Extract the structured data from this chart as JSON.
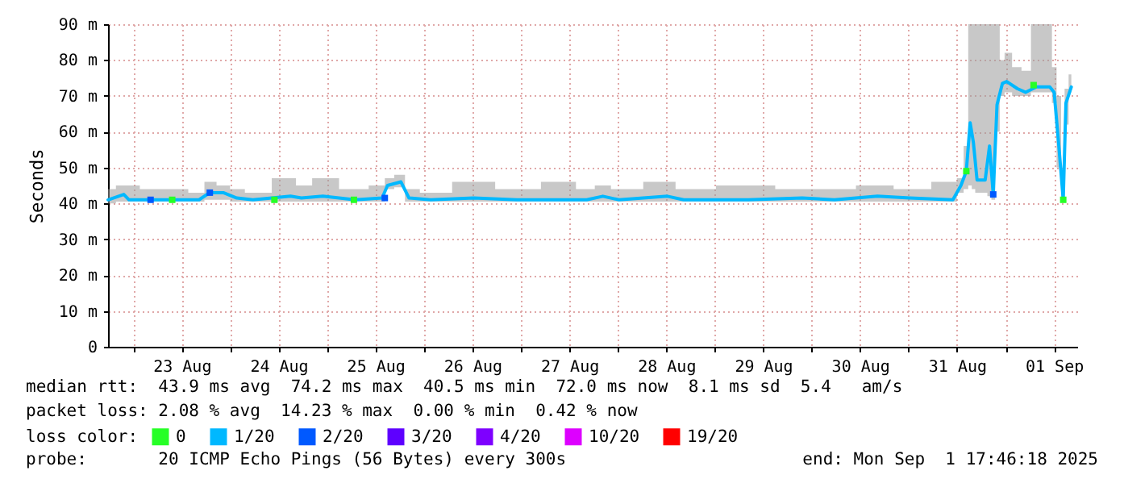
{
  "chart_data": {
    "type": "line",
    "ylabel": "Seconds",
    "legend_title": "loss color:",
    "xlim": [
      "2025-08-22T17:46",
      "2025-09-01T17:46"
    ],
    "xticks": [
      {
        "value": "2025-08-23T00:00",
        "label": null
      },
      {
        "value": "2025-08-23T12:00",
        "label": "23 Aug"
      },
      {
        "value": "2025-08-24T00:00",
        "label": null
      },
      {
        "value": "2025-08-24T12:00",
        "label": "24 Aug"
      },
      {
        "value": "2025-08-25T00:00",
        "label": null
      },
      {
        "value": "2025-08-25T12:00",
        "label": "25 Aug"
      },
      {
        "value": "2025-08-26T00:00",
        "label": null
      },
      {
        "value": "2025-08-26T12:00",
        "label": "26 Aug"
      },
      {
        "value": "2025-08-27T00:00",
        "label": null
      },
      {
        "value": "2025-08-27T12:00",
        "label": "27 Aug"
      },
      {
        "value": "2025-08-28T00:00",
        "label": null
      },
      {
        "value": "2025-08-28T12:00",
        "label": "28 Aug"
      },
      {
        "value": "2025-08-29T00:00",
        "label": null
      },
      {
        "value": "2025-08-29T12:00",
        "label": "29 Aug"
      },
      {
        "value": "2025-08-30T00:00",
        "label": null
      },
      {
        "value": "2025-08-30T12:00",
        "label": "30 Aug"
      },
      {
        "value": "2025-08-31T00:00",
        "label": null
      },
      {
        "value": "2025-08-31T12:00",
        "label": "31 Aug"
      },
      {
        "value": "2025-09-01T00:00",
        "label": null
      },
      {
        "value": "2025-09-01T12:00",
        "label": "01 Sep"
      }
    ],
    "ylim": [
      0,
      90
    ],
    "yticks": [
      0,
      {
        "value": 10,
        "label": "10 m"
      },
      {
        "value": 20,
        "label": "20 m"
      },
      {
        "value": 30,
        "label": "30 m"
      },
      {
        "value": 40,
        "label": "40 m"
      },
      {
        "value": 50,
        "label": "50 m"
      },
      {
        "value": 60,
        "label": "60 m"
      },
      {
        "value": 70,
        "label": "70 m"
      },
      {
        "value": 80,
        "label": "80 m"
      },
      {
        "value": 90,
        "label": "90 m"
      }
    ],
    "grid": true,
    "legend": "bottom",
    "series": [
      {
        "name": "0",
        "type": "scatter",
        "marker": "square",
        "color": "#26ff26",
        "x": [
          "2025-08-23T09:39",
          "2025-08-24T10:58",
          "2025-08-25T06:39",
          "2025-08-31T14:18",
          "2025-09-01T06:58",
          "2025-09-01T14:18"
        ],
        "values": [
          41,
          41,
          41,
          49,
          73,
          41
        ]
      },
      {
        "name": "1/20",
        "marker": "none",
        "color": "#00b8ff",
        "x": [
          "2025-08-22T17:46",
          "2025-08-22T21:40",
          "2025-08-22T22:58",
          "2025-08-23T04:18",
          "2025-08-23T10:58",
          "2025-08-23T16:18",
          "2025-08-23T18:58",
          "2025-08-23T22:18",
          "2025-08-24T01:39",
          "2025-08-24T05:39",
          "2025-08-24T14:58",
          "2025-08-24T17:39",
          "2025-08-24T22:58",
          "2025-08-25T06:58",
          "2025-08-25T13:39",
          "2025-08-25T14:58",
          "2025-08-25T18:18",
          "2025-08-25T20:18",
          "2025-08-26T01:39",
          "2025-08-26T12:18",
          "2025-08-26T22:58",
          "2025-08-27T10:58",
          "2025-08-27T16:18",
          "2025-08-27T20:18",
          "2025-08-28T00:18",
          "2025-08-28T12:18",
          "2025-08-28T16:18",
          "2025-08-29T08:18",
          "2025-08-29T21:39",
          "2025-08-30T05:39",
          "2025-08-30T16:18",
          "2025-08-31T00:18",
          "2025-08-31T10:58",
          "2025-08-31T12:58",
          "2025-08-31T14:18",
          "2025-08-31T15:15",
          "2025-08-31T16:03",
          "2025-08-31T16:58",
          "2025-08-31T18:58",
          "2025-08-31T20:03",
          "2025-08-31T20:58",
          "2025-08-31T21:54",
          "2025-08-31T23:15",
          "2025-09-01T00:18",
          "2025-09-01T02:58",
          "2025-09-01T04:58",
          "2025-09-01T07:39",
          "2025-09-01T10:58",
          "2025-09-01T12:03",
          "2025-09-01T13:15",
          "2025-09-01T14:18",
          "2025-09-01T14:58",
          "2025-09-01T16:18"
        ],
        "values": [
          41,
          42.5,
          41,
          41,
          41,
          41,
          43,
          43,
          41.5,
          41,
          42,
          41.5,
          42,
          41,
          41.5,
          45,
          46,
          41.5,
          41,
          41.5,
          41,
          41,
          41,
          42,
          41,
          42,
          41,
          41,
          41.5,
          41,
          42,
          41.5,
          41,
          45,
          49,
          62.5,
          57,
          46.5,
          46.5,
          56,
          42.5,
          67.5,
          73.5,
          74,
          72,
          71,
          72.5,
          72.5,
          71,
          55.5,
          41,
          68,
          72.5
        ],
        "lower": [
          40,
          40.5,
          40.5,
          40.5,
          40.5,
          40.5,
          41,
          41,
          40.5,
          40.5,
          40.5,
          40.5,
          40.5,
          40.5,
          40.5,
          44,
          44.5,
          40.5,
          40.5,
          40.5,
          40.5,
          40.5,
          40.5,
          40.5,
          40.5,
          40.5,
          40.5,
          40.5,
          40.5,
          40.5,
          40.5,
          40.5,
          40.5,
          43,
          44,
          45,
          44,
          43,
          43,
          42,
          41,
          60,
          70,
          71,
          70,
          70,
          71,
          71,
          68,
          50,
          40.5,
          62,
          71
        ],
        "upper": [
          44,
          45,
          45,
          44,
          44,
          43,
          46,
          45,
          44,
          43,
          47,
          45,
          47,
          44,
          45,
          47,
          48,
          44,
          43,
          46,
          44,
          46,
          44,
          45,
          44,
          46,
          44,
          45,
          44,
          44,
          45,
          44,
          46,
          47,
          56,
          90,
          90,
          90,
          90,
          90,
          90,
          90,
          80,
          82,
          78,
          77,
          90,
          90,
          78,
          70,
          45,
          72,
          76
        ]
      },
      {
        "name": "2/20",
        "type": "scatter",
        "marker": "square",
        "color": "#0059ff",
        "x": [
          "2025-08-23T04:18",
          "2025-08-23T18:58",
          "2025-08-25T14:18",
          "2025-08-31T20:58"
        ],
        "values": [
          41,
          43,
          41.5,
          42.5
        ]
      },
      {
        "name": "3/20",
        "type": "scatter",
        "marker": "square",
        "color": "#5e00ff"
      },
      {
        "name": "4/20",
        "type": "scatter",
        "marker": "square",
        "color": "#7e00ff"
      },
      {
        "name": "10/20",
        "type": "scatter",
        "marker": "square",
        "color": "#dd00ff"
      },
      {
        "name": "19/20",
        "type": "scatter",
        "marker": "square",
        "color": "#ff0000"
      }
    ],
    "annotations": [
      "median rtt:  43.9 ms avg  74.2 ms max  40.5 ms min  72.0 ms now  8.1 ms sd  5.4   am/s",
      "packet loss: 2.08 % avg  14.23 % max  0.00 % min  0.42 % now",
      "probe:       20 ICMP Echo Pings (56 Bytes) every 300s",
      "end: Mon Sep  1 17:46:18 2025"
    ]
  }
}
